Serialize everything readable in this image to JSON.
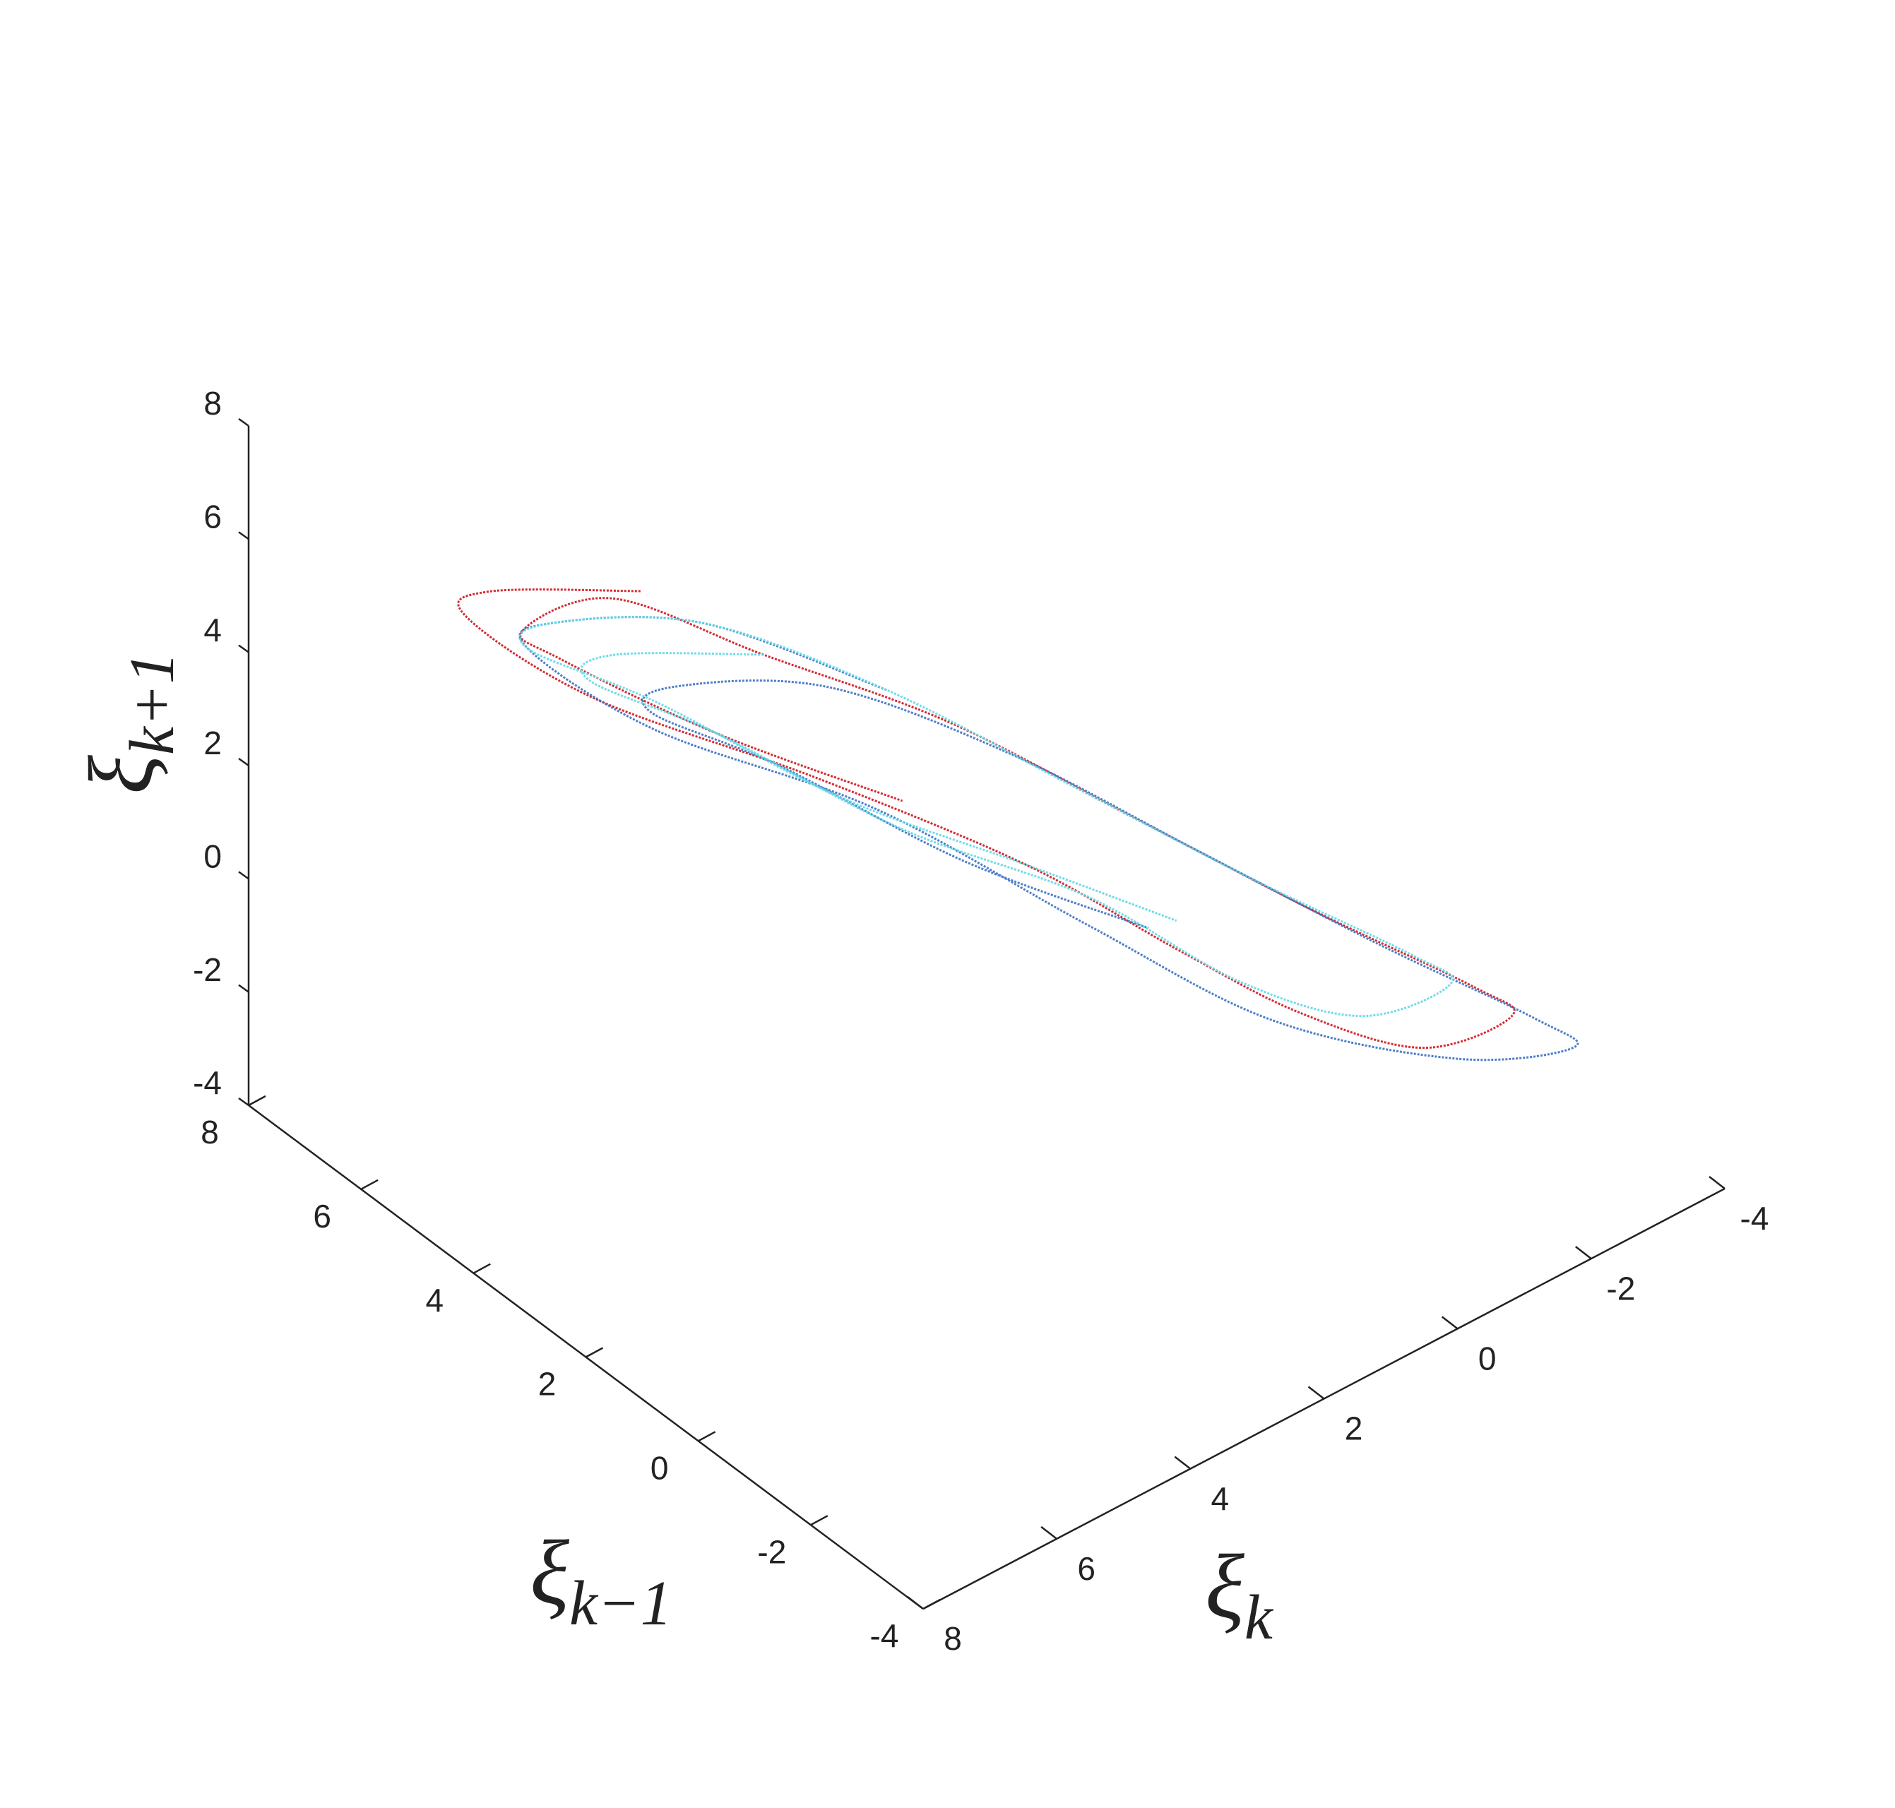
{
  "chart_data": {
    "type": "line3d",
    "xlabel": {
      "base": "ξ",
      "sub": "k"
    },
    "ylabel": {
      "base": "ξ",
      "sub": "k−1"
    },
    "zlabel": {
      "base": "ξ",
      "sub": "k+1"
    },
    "xlim": [
      -4,
      8
    ],
    "ylim": [
      -4,
      8
    ],
    "zlim": [
      -4,
      8
    ],
    "xticks": [
      8,
      6,
      4,
      2,
      0,
      -2,
      -4
    ],
    "yticks": [
      8,
      6,
      4,
      2,
      0,
      -2,
      -4
    ],
    "zticks": [
      -4,
      -2,
      0,
      2,
      4,
      6,
      8
    ],
    "series": [
      {
        "color": "#d0141c",
        "x": [
          5.5,
          6.5,
          6,
          4.5,
          2.5,
          1,
          0,
          -1,
          -2,
          -2.5,
          -1.5,
          0,
          1.5,
          3,
          4.5,
          5.5,
          6,
          5,
          3.5,
          2
        ],
        "y": [
          4,
          5.5,
          6.5,
          6,
          4.5,
          2.5,
          1,
          0,
          -1,
          -2,
          -2.5,
          -1.5,
          0,
          1.5,
          3,
          4.5,
          5.5,
          6,
          5,
          3.5
        ],
        "z": [
          6.5,
          6,
          4.5,
          2.5,
          1,
          0,
          -1,
          -2,
          -2.5,
          -1.5,
          0,
          1.5,
          3,
          4.5,
          5.5,
          6,
          5,
          3.5,
          2,
          1
        ]
      },
      {
        "color": "#3a6fc4",
        "x": [
          3.5,
          5,
          6,
          5.5,
          4,
          2,
          0.5,
          -1,
          -2.5,
          -3,
          -2,
          -0.5,
          1,
          2.5,
          4,
          5,
          4.5,
          3,
          1.5,
          0
        ],
        "y": [
          2,
          3.5,
          5,
          6,
          5.5,
          4,
          2,
          0.5,
          -1,
          -2.5,
          -3,
          -2,
          -0.5,
          1,
          2.5,
          4,
          5,
          4.5,
          3,
          1.5
        ],
        "z": [
          5,
          6,
          5.5,
          4,
          2,
          0.5,
          -1,
          -2.5,
          -3,
          -2,
          -0.5,
          1,
          2.5,
          4,
          5,
          4.5,
          3,
          1.5,
          0,
          -1
        ]
      },
      {
        "color": "#5fd8e6",
        "x": [
          4.5,
          5.5,
          5,
          3.5,
          2,
          0.5,
          -0.5,
          -1.5,
          -2,
          -1,
          0.5,
          2,
          3.5,
          5,
          6,
          5.5,
          4,
          2.5,
          1,
          0
        ],
        "y": [
          3,
          4.5,
          5.5,
          5,
          3.5,
          2,
          0.5,
          -0.5,
          -1.5,
          -2,
          -1,
          0.5,
          2,
          3.5,
          5,
          6,
          5.5,
          4,
          2.5,
          1
        ],
        "z": [
          5.5,
          5,
          3.5,
          2,
          0.5,
          -0.5,
          -1.5,
          -2,
          -1,
          0.5,
          2,
          3.5,
          5,
          6,
          5.5,
          4,
          2.5,
          1,
          0,
          -0.5
        ]
      }
    ]
  }
}
